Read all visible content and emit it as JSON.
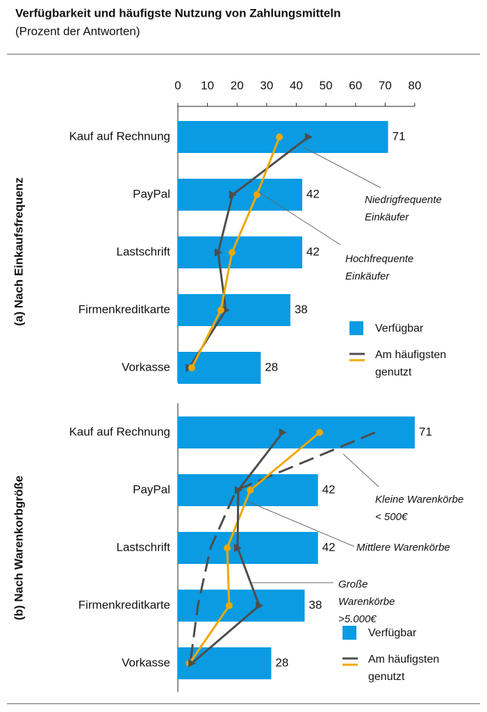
{
  "chart_data": [
    {
      "type": "bar",
      "title": "Verfügbarkeit und häufigste Nutzung von Zahlungsmitteln",
      "subtitle": "(Prozent der Antworten)",
      "panel_label": "(a) Nach Einkaufsfrequenz",
      "categories": [
        "Kauf auf Rechnung",
        "PayPal",
        "Lastschrift",
        "Firmenkreditkarte",
        "Vorkasse"
      ],
      "bar_series": {
        "name": "Verfügbar",
        "color": "#0a9be3",
        "values": [
          71,
          42,
          42,
          38,
          28
        ]
      },
      "line_legend": "Am häufigsten genutzt",
      "series": [
        {
          "name": "Niedrigfrequente Einkäufer",
          "color": "#4d4d4d",
          "marker": "triangle",
          "dashed": false,
          "values": [
            44.1,
            18.5,
            13.6,
            16.2,
            3.8
          ]
        },
        {
          "name": "Hochfrequente Einkäufer",
          "color": "#f0a800",
          "marker": "circle",
          "dashed": false,
          "values": [
            34.3,
            26.7,
            18.3,
            14.5,
            4.7
          ]
        }
      ],
      "xlim": [
        0,
        80
      ],
      "xticks": [
        0,
        10,
        20,
        30,
        40,
        50,
        60,
        70,
        80
      ]
    },
    {
      "type": "bar",
      "panel_label": "(b) Nach Warenkorbgröße",
      "categories": [
        "Kauf auf Rechnung",
        "PayPal",
        "Lastschrift",
        "Firmenkreditkarte",
        "Vorkasse"
      ],
      "bar_series": {
        "name": "Verfügbar",
        "color": "#0a9be3",
        "values": [
          71,
          42,
          42,
          38,
          28
        ]
      },
      "line_legend": "Am häufigsten genutzt",
      "series": [
        {
          "name": "Kleine Warenkörbe < 500€",
          "color": "#4d4d4d",
          "marker": "none",
          "dashed": true,
          "values": [
            59.1,
            17.5,
            9.8,
            6.0,
            3.7
          ]
        },
        {
          "name": "Mittlere Warenkörbe",
          "color": "#f0a800",
          "marker": "circle",
          "dashed": false,
          "values": [
            42.5,
            21.7,
            14.8,
            15.4,
            3.5
          ]
        },
        {
          "name": "Große Warenkörbe >5.000€",
          "color": "#4d4d4d",
          "marker": "triangle",
          "dashed": false,
          "values": [
            31.4,
            18.1,
            17.9,
            24.4,
            4.2
          ]
        }
      ],
      "xlim": [
        0,
        71
      ]
    }
  ]
}
